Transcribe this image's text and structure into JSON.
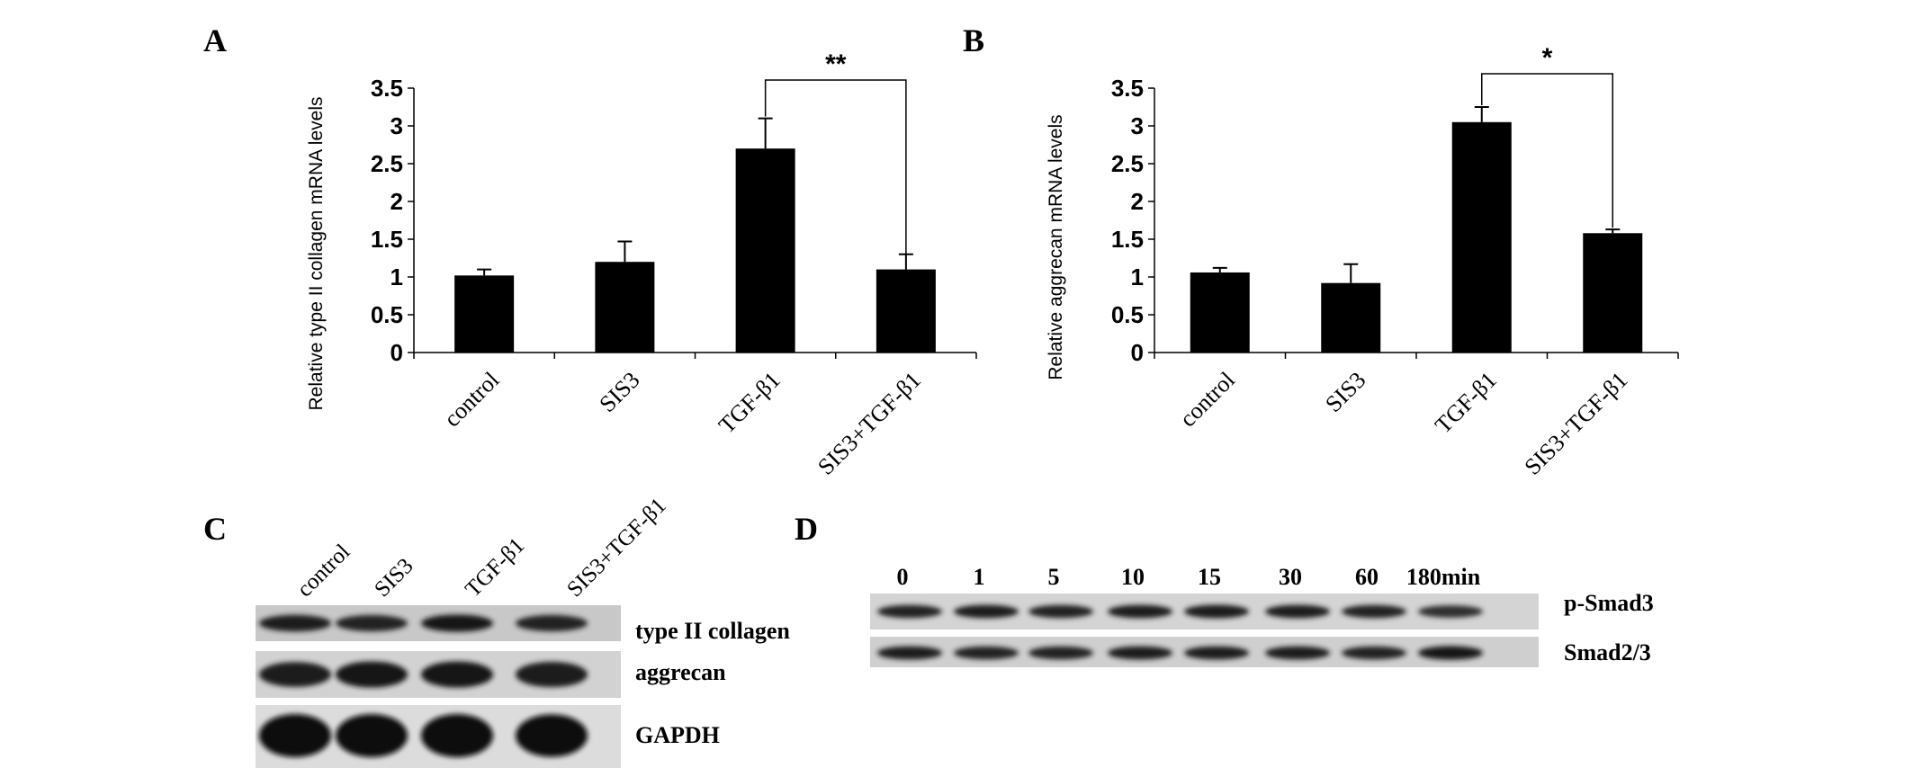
{
  "panel_labels": [
    "A",
    "B",
    "C",
    "D"
  ],
  "chart_data": [
    {
      "type": "bar",
      "panel": "A",
      "categories": [
        "control",
        "SIS3",
        "TGF-β1",
        "SIS3+TGF-β1"
      ],
      "values": [
        1.02,
        1.2,
        2.7,
        1.1
      ],
      "errors": [
        0.08,
        0.27,
        0.4,
        0.2
      ],
      "ylabel": "Relative type II collagen mRNA levels",
      "ylim": [
        0,
        3.5
      ],
      "yticks": [
        "0",
        "0.5",
        "1",
        "1.5",
        "2",
        "2.5",
        "3",
        "3.5"
      ],
      "bar_color": "#000000",
      "significance": {
        "between": [
          "TGF-β1",
          "SIS3+TGF-β1"
        ],
        "label": "**"
      }
    },
    {
      "type": "bar",
      "panel": "B",
      "categories": [
        "control",
        "SIS3",
        "TGF-β1",
        "SIS3+TGF-β1"
      ],
      "values": [
        1.06,
        0.92,
        3.05,
        1.58
      ],
      "errors": [
        0.06,
        0.25,
        0.2,
        0.05
      ],
      "ylabel": "Relative aggrecan mRNA levels",
      "ylim": [
        0,
        3.5
      ],
      "yticks": [
        "0",
        "0.5",
        "1",
        "1.5",
        "2",
        "2.5",
        "3",
        "3.5"
      ],
      "bar_color": "#000000",
      "significance": {
        "between": [
          "TGF-β1",
          "SIS3+TGF-β1"
        ],
        "label": "*"
      }
    }
  ],
  "blot_c": {
    "lanes": [
      "control",
      "SIS3",
      "TGF-β1",
      "SIS3+TGF-β1"
    ],
    "rows": [
      {
        "label": "type II collagen",
        "intensity": [
          0.75,
          0.7,
          0.85,
          0.7
        ]
      },
      {
        "label": "aggrecan",
        "intensity": [
          0.75,
          0.9,
          0.9,
          0.8
        ]
      },
      {
        "label": "GAPDH",
        "intensity": [
          1.0,
          1.0,
          1.0,
          0.95
        ]
      }
    ]
  },
  "blot_d": {
    "times": [
      "0",
      "1",
      "5",
      "10",
      "15",
      "30",
      "60",
      "180min"
    ],
    "rows": [
      {
        "label": "p-Smad3",
        "intensity": [
          0.7,
          0.75,
          0.7,
          0.75,
          0.8,
          0.75,
          0.7,
          0.55
        ]
      },
      {
        "label": "Smad2/3",
        "intensity": [
          0.75,
          0.7,
          0.7,
          0.75,
          0.75,
          0.75,
          0.7,
          0.85
        ]
      }
    ]
  }
}
